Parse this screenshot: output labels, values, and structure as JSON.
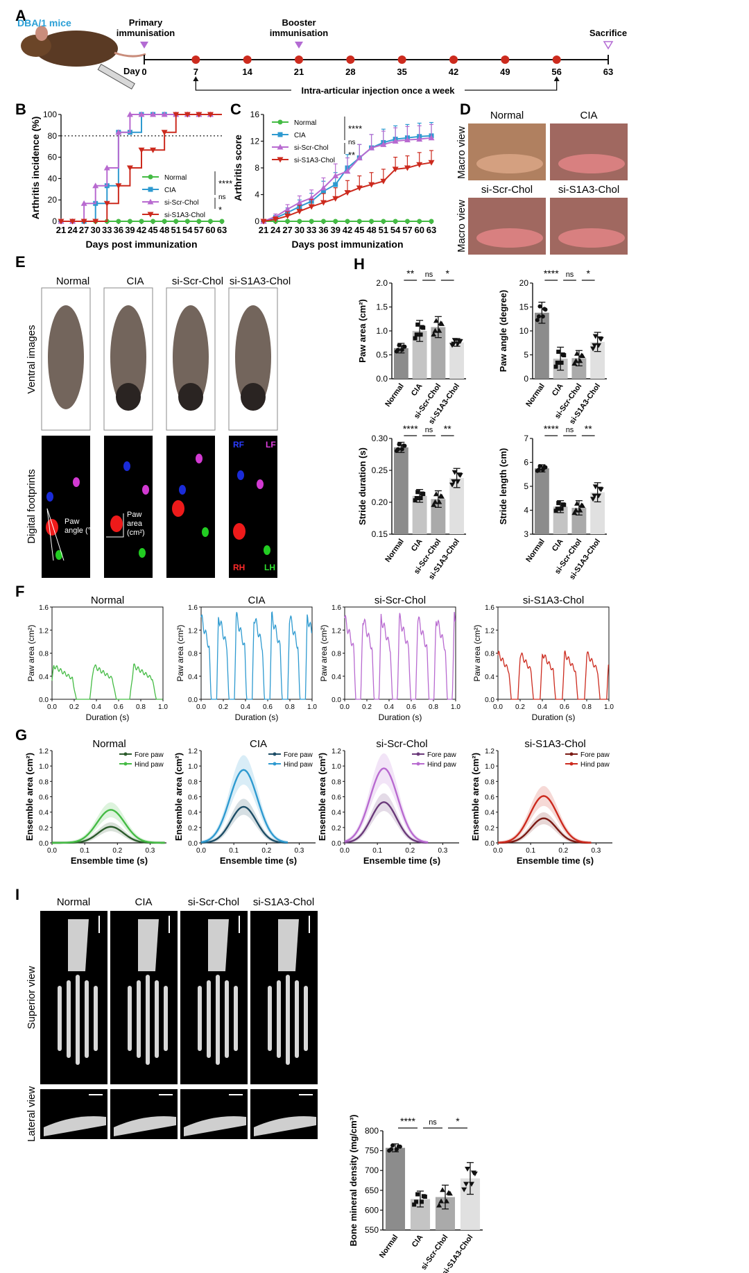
{
  "colors": {
    "normal": "#44bb44",
    "cia": "#2e9ad0",
    "scr": "#b86ad0",
    "s1a3": "#cc2a1e",
    "red": "#cc2b1e",
    "purple": "#b36bd3",
    "dblue": "#2a9fd6"
  },
  "panelA": {
    "label": "A",
    "mice": "DBA/1 mice",
    "primary": "Primary\nimmunisation",
    "booster": "Booster\nimmunisation",
    "sacrifice": "Sacrifice",
    "day_label": "Day",
    "days": [
      "0",
      "7",
      "14",
      "21",
      "28",
      "35",
      "42",
      "49",
      "56",
      "63"
    ],
    "injection_text": "Intra-articular injection once a week"
  },
  "chart_data": [
    {
      "id": "B",
      "type": "line",
      "title": "",
      "xlabel": "Days post immunization",
      "ylabel": "Arthritis incidence (%)",
      "ylim": [
        0,
        100
      ],
      "x": [
        21,
        24,
        27,
        30,
        33,
        36,
        39,
        42,
        45,
        48,
        51,
        54,
        57,
        60,
        63
      ],
      "ref_line": 80,
      "series": [
        {
          "name": "Normal",
          "x": [
            21,
            63
          ],
          "values": [
            0,
            0
          ],
          "step": true
        },
        {
          "name": "CIA",
          "x": [
            21,
            30,
            33,
            36,
            42,
            63
          ],
          "values": [
            0,
            16.7,
            33.3,
            83.3,
            100,
            100
          ],
          "step": true
        },
        {
          "name": "si-Scr-Chol",
          "x": [
            21,
            27,
            30,
            33,
            36,
            39,
            63
          ],
          "values": [
            0,
            16.7,
            33.3,
            50,
            83.3,
            100,
            100
          ],
          "step": true
        },
        {
          "name": "si-S1A3-Chol",
          "x": [
            21,
            33,
            36,
            39,
            42,
            48,
            51,
            63
          ],
          "values": [
            0,
            16.7,
            33.3,
            50,
            66.7,
            83.3,
            100,
            100
          ],
          "step": true
        }
      ],
      "sig": [
        "****",
        "ns",
        "*"
      ]
    },
    {
      "id": "C",
      "type": "line",
      "xlabel": "Days post immunization",
      "ylabel": "Arthritis score",
      "ylim": [
        0,
        16
      ],
      "x": [
        21,
        24,
        27,
        30,
        33,
        36,
        39,
        42,
        45,
        48,
        51,
        54,
        57,
        60,
        63
      ],
      "series": [
        {
          "name": "Normal",
          "values": [
            0,
            0,
            0,
            0,
            0,
            0,
            0,
            0,
            0,
            0,
            0,
            0,
            0,
            0,
            0
          ]
        },
        {
          "name": "CIA",
          "values": [
            0,
            0.5,
            1.3,
            2.2,
            3,
            4.5,
            5.5,
            8,
            9.5,
            11,
            11.8,
            12.3,
            12.5,
            12.7,
            12.8
          ]
        },
        {
          "name": "si-Scr-Chol",
          "values": [
            0,
            0.7,
            1.8,
            2.8,
            3.5,
            5,
            6.8,
            7.5,
            9.5,
            11,
            11.5,
            12,
            12.2,
            12.3,
            12.5
          ]
        },
        {
          "name": "si-S1A3-Chol",
          "values": [
            0,
            0.3,
            0.8,
            1.5,
            2.2,
            2.8,
            3.4,
            4.3,
            5,
            5.5,
            6,
            7.8,
            8,
            8.5,
            8.8
          ]
        }
      ],
      "err": [
        0,
        0.4,
        0.7,
        1,
        1.2,
        1.5,
        1.8,
        2,
        2,
        2,
        2,
        2,
        2,
        2,
        2
      ],
      "sig": [
        "****",
        "ns",
        "**"
      ]
    },
    {
      "id": "H1",
      "type": "bar",
      "ylabel": "Paw area (cm²)",
      "ylim": [
        0,
        2.0
      ],
      "yticks": [
        "0.0",
        "0.5",
        "1.0",
        "1.5",
        "2.0"
      ],
      "categories": [
        "Normal",
        "CIA",
        "si-Scr-Chol",
        "si-S1A3-Chol"
      ],
      "values": [
        0.64,
        1.0,
        1.08,
        0.76
      ],
      "err": [
        0.1,
        0.22,
        0.22,
        0.08
      ],
      "sig": [
        "**",
        "ns",
        "*"
      ]
    },
    {
      "id": "H2",
      "type": "bar",
      "ylabel": "Paw angle (degree)",
      "ylim": [
        0,
        20
      ],
      "yticks": [
        "0",
        "5",
        "10",
        "15",
        "20"
      ],
      "categories": [
        "Normal",
        "CIA",
        "si-Scr-Chol",
        "si-S1A3-Chol"
      ],
      "values": [
        13.8,
        4.2,
        4.3,
        7.7
      ],
      "err": [
        2.2,
        2.4,
        1.6,
        2
      ],
      "sig": [
        "****",
        "ns",
        "*"
      ]
    },
    {
      "id": "H3",
      "type": "bar",
      "ylabel": "Stride duration (s)",
      "ylim": [
        0.15,
        0.3
      ],
      "yticks": [
        "0.15",
        "0.20",
        "0.25",
        "0.30"
      ],
      "categories": [
        "Normal",
        "CIA",
        "si-Scr-Chol",
        "si-S1A3-Chol"
      ],
      "values": [
        0.286,
        0.21,
        0.205,
        0.238
      ],
      "err": [
        0.008,
        0.01,
        0.013,
        0.015
      ],
      "sig": [
        "****",
        "ns",
        "**"
      ]
    },
    {
      "id": "H4",
      "type": "bar",
      "ylabel": "Stride length (cm)",
      "ylim": [
        3,
        7
      ],
      "yticks": [
        "3",
        "4",
        "5",
        "6",
        "7"
      ],
      "categories": [
        "Normal",
        "CIA",
        "si-Scr-Chol",
        "si-S1A3-Chol"
      ],
      "values": [
        5.75,
        4.15,
        4.1,
        4.75
      ],
      "err": [
        0.15,
        0.25,
        0.3,
        0.4
      ],
      "sig": [
        "****",
        "ns",
        "**"
      ]
    },
    {
      "id": "I",
      "type": "bar",
      "ylabel": "Bone mineral density (mg/cm³)",
      "ylim": [
        550,
        800
      ],
      "yticks": [
        "550",
        "600",
        "650",
        "700",
        "750",
        "800"
      ],
      "categories": [
        "Normal",
        "CIA",
        "si-Scr-Chol",
        "si-S1A3-Chol"
      ],
      "values": [
        757,
        628,
        633,
        680
      ],
      "err": [
        10,
        20,
        30,
        40
      ],
      "sig": [
        "****",
        "ns",
        "*"
      ]
    }
  ],
  "panelD": {
    "label": "D",
    "macro": "Macro view",
    "groups": [
      "Normal",
      "CIA",
      "si-Scr-Chol",
      "si-S1A3-Chol"
    ]
  },
  "panelE": {
    "label": "E",
    "groups": [
      "Normal",
      "CIA",
      "si-Scr-Chol",
      "si-S1A3-Chol"
    ],
    "ventral": "Ventral images",
    "digital": "Digital footprints",
    "paw_angle": "Paw\nangle (°)",
    "paw_area": "Paw\narea\n(cm²)",
    "RF": "RF",
    "LF": "LF",
    "RH": "RH",
    "LH": "LH"
  },
  "panelH": {
    "label": "H"
  },
  "panelF": {
    "label": "F",
    "ylabel": "Paw area (cm²)",
    "xlabel": "Duration (s)",
    "yticks": [
      "0.0",
      "0.4",
      "0.8",
      "1.2",
      "1.6"
    ],
    "xticks": [
      "0.0",
      "0.2",
      "0.4",
      "0.6",
      "0.8",
      "1.0"
    ],
    "titles": [
      "Normal",
      "CIA",
      "si-Scr-Chol",
      "si-S1A3-Chol"
    ]
  },
  "panelG": {
    "label": "G",
    "ylabel": "Ensemble area (cm²)",
    "xlabel": "Ensemble time (s)",
    "yticks": [
      "0.0",
      "0.2",
      "0.4",
      "0.6",
      "0.8",
      "1.0",
      "1.2"
    ],
    "xticks": [
      "0.0",
      "0.1",
      "0.2",
      "0.3"
    ],
    "titles": [
      "Normal",
      "CIA",
      "si-Scr-Chol",
      "si-S1A3-Chol"
    ],
    "legend": [
      "Fore paw",
      "Hind paw"
    ],
    "peaks": {
      "fore": [
        0.21,
        0.47,
        0.53,
        0.32
      ],
      "hind": [
        0.43,
        0.95,
        0.97,
        0.61
      ],
      "tpeak": [
        0.18,
        0.13,
        0.12,
        0.14
      ],
      "tend": [
        0.35,
        0.27,
        0.26,
        0.29
      ]
    }
  },
  "panelI": {
    "label": "I",
    "groups": [
      "Normal",
      "CIA",
      "si-Scr-Chol",
      "si-S1A3-Chol"
    ],
    "superior": "Superior view",
    "lateral": "Lateral view"
  }
}
